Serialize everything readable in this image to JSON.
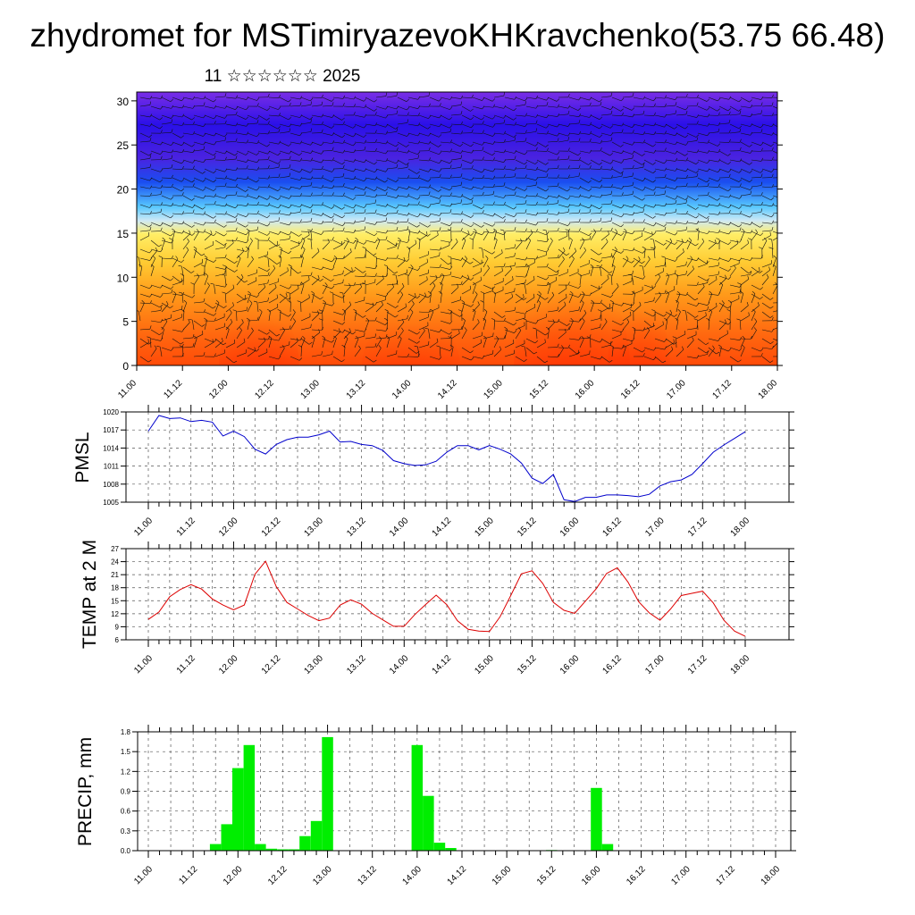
{
  "header": {
    "title": "zhydromet for MSTimiryazevoKHKravchenko(53.75 66.48)",
    "subtitle": "11 ☆☆☆☆☆☆ 2025"
  },
  "time_axis_labels": [
    "11.00",
    "11.12",
    "12.00",
    "12.12",
    "13.00",
    "13.12",
    "14.00",
    "14.12",
    "15.00",
    "15.12",
    "16.00",
    "16.12",
    "17.00",
    "17.12",
    "18.00"
  ],
  "colors": {
    "pmsl_line": "#0000cc",
    "temp_line": "#dd0000",
    "precip_bar": "#00ee00"
  },
  "chart_data": [
    {
      "type": "heatmap",
      "name": "cross-section",
      "x_ticks": [
        "11.00",
        "11.12",
        "12.00",
        "12.12",
        "13.00",
        "13.12",
        "14.00",
        "14.12",
        "15.00",
        "15.12",
        "16.00",
        "16.12",
        "17.00",
        "17.12",
        "18.00"
      ],
      "y_ticks": [
        0,
        5,
        10,
        15,
        20,
        25,
        30
      ],
      "ylim": [
        0,
        31
      ],
      "overlay": "wind barbs",
      "colormap": "purple-blue-cyan-yellow-orange-red"
    },
    {
      "type": "line",
      "ylabel": "PMSL",
      "ylim": [
        1005,
        1020
      ],
      "y_ticks": [
        1005,
        1008,
        1011,
        1014,
        1017,
        1020
      ],
      "x": [
        "11.00",
        "11.03",
        "11.06",
        "11.09",
        "11.12",
        "11.15",
        "11.18",
        "11.21",
        "12.00",
        "12.03",
        "12.06",
        "12.09",
        "12.12",
        "12.15",
        "12.18",
        "12.21",
        "13.00",
        "13.03",
        "13.06",
        "13.09",
        "13.12",
        "13.15",
        "13.18",
        "13.21",
        "14.00",
        "14.03",
        "14.06",
        "14.09",
        "14.12",
        "14.15",
        "14.18",
        "14.21",
        "15.00",
        "15.03",
        "15.06",
        "15.09",
        "15.12",
        "15.15",
        "15.18",
        "15.21",
        "16.00",
        "16.03",
        "16.06",
        "16.09",
        "16.12",
        "16.15",
        "16.18",
        "16.21",
        "17.00",
        "17.03",
        "17.06",
        "17.09",
        "17.12",
        "17.15",
        "17.18",
        "17.21",
        "18.00"
      ],
      "series": [
        {
          "values": [
            1016.8,
            1019.4,
            1018.9,
            1019.0,
            1018.4,
            1018.6,
            1018.3,
            1016.0,
            1016.8,
            1015.9,
            1013.8,
            1013.0,
            1014.6,
            1015.4,
            1015.8,
            1015.8,
            1016.2,
            1016.8,
            1015.0,
            1015.1,
            1014.6,
            1014.4,
            1013.6,
            1011.9,
            1011.4,
            1011.1,
            1011.2,
            1011.8,
            1013.3,
            1014.4,
            1014.4,
            1013.7,
            1014.4,
            1013.8,
            1013.0,
            1011.5,
            1009.0,
            1008.1,
            1009.6,
            1005.4,
            1005.1,
            1005.8,
            1005.8,
            1006.2,
            1006.2,
            1006.1,
            1005.9,
            1006.3,
            1007.7,
            1008.4,
            1008.7,
            1009.6,
            1011.4,
            1013.3,
            1014.5,
            1015.6,
            1016.7
          ]
        }
      ]
    },
    {
      "type": "line",
      "ylabel": "TEMP at 2 M",
      "ylim": [
        6,
        27
      ],
      "y_ticks": [
        6,
        9,
        12,
        15,
        18,
        21,
        24,
        27
      ],
      "x": [
        "11.00",
        "11.03",
        "11.06",
        "11.09",
        "11.12",
        "11.15",
        "11.18",
        "11.21",
        "12.00",
        "12.03",
        "12.06",
        "12.09",
        "12.12",
        "12.15",
        "12.18",
        "12.21",
        "13.00",
        "13.03",
        "13.06",
        "13.09",
        "13.12",
        "13.15",
        "13.18",
        "13.21",
        "14.00",
        "14.03",
        "14.06",
        "14.09",
        "14.12",
        "14.15",
        "14.18",
        "14.21",
        "15.00",
        "15.03",
        "15.06",
        "15.09",
        "15.12",
        "15.15",
        "15.18",
        "15.21",
        "16.00",
        "16.03",
        "16.06",
        "16.09",
        "16.12",
        "16.15",
        "16.18",
        "16.21",
        "17.00",
        "17.03",
        "17.06",
        "17.09",
        "17.12",
        "17.15",
        "17.18",
        "17.21",
        "18.00"
      ],
      "series": [
        {
          "values": [
            10.7,
            12.4,
            15.9,
            17.6,
            18.7,
            17.7,
            15.4,
            14.0,
            12.9,
            14.0,
            21.1,
            24.1,
            18.3,
            14.6,
            13.1,
            11.6,
            10.4,
            11.0,
            14.0,
            15.2,
            14.2,
            12.1,
            10.6,
            9.1,
            9.1,
            11.8,
            14.1,
            16.3,
            14.1,
            10.4,
            8.4,
            8.0,
            7.9,
            11.3,
            16.2,
            21.2,
            21.9,
            19.0,
            14.6,
            12.8,
            12.1,
            14.9,
            17.7,
            21.3,
            22.6,
            19.3,
            14.8,
            12.2,
            10.5,
            13.1,
            16.2,
            16.7,
            17.2,
            14.5,
            10.5,
            8.0,
            6.8
          ]
        }
      ]
    },
    {
      "type": "bar",
      "ylabel": "PRECIP, mm",
      "ylim": [
        0,
        1.8
      ],
      "y_ticks": [
        "0.0",
        "0.3",
        "0.6",
        "0.9",
        "1.2",
        "1.5",
        "1.8"
      ],
      "x": [
        "11.00",
        "11.03",
        "11.06",
        "11.09",
        "11.12",
        "11.15",
        "11.18",
        "11.21",
        "12.00",
        "12.03",
        "12.06",
        "12.09",
        "12.12",
        "12.15",
        "12.18",
        "12.21",
        "13.00",
        "13.03",
        "13.06",
        "13.09",
        "13.12",
        "13.15",
        "13.18",
        "13.21",
        "14.00",
        "14.03",
        "14.06",
        "14.09",
        "14.12",
        "14.15",
        "14.18",
        "14.21",
        "15.00",
        "15.03",
        "15.06",
        "15.09",
        "15.12",
        "15.15",
        "15.18",
        "15.21",
        "16.00",
        "16.03",
        "16.06",
        "16.09",
        "16.12",
        "16.15",
        "16.18",
        "16.21",
        "17.00",
        "17.03",
        "17.06",
        "17.09",
        "17.12",
        "17.15",
        "17.18",
        "17.21",
        "18.00"
      ],
      "values": [
        0,
        0,
        0,
        0,
        0,
        0.1,
        0.4,
        1.25,
        1.6,
        0.1,
        0.03,
        0.02,
        0.02,
        0.22,
        0.45,
        1.72,
        0,
        0,
        0,
        0,
        0,
        0,
        0,
        1.6,
        0.83,
        0.12,
        0.04,
        0,
        0,
        0,
        0,
        0,
        0,
        0,
        0,
        0.01,
        0,
        0,
        0,
        0.95,
        0.1,
        0,
        0,
        0,
        0,
        0,
        0,
        0,
        0,
        0,
        0,
        0,
        0,
        0,
        0,
        0,
        0
      ]
    }
  ]
}
